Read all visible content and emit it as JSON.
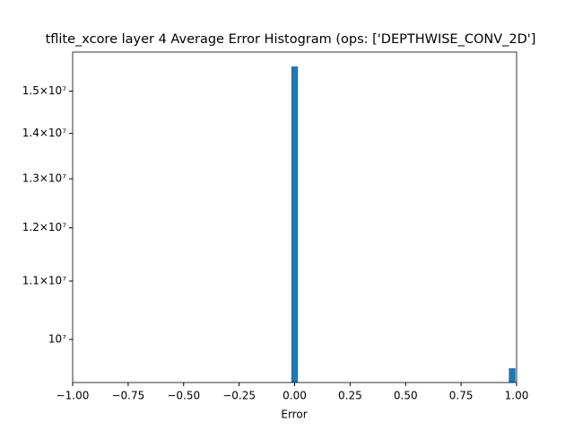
{
  "chart_data": {
    "type": "histogram",
    "title": "tflite_xcore layer 4 Average Error Histogram (ops: ['DEPTHWISE_CONV_2D']",
    "x_label": "Error",
    "bins": [
      -1,
      -0.015,
      0.015,
      0.965,
      0.995
    ],
    "values": [
      0,
      15620000,
      0,
      9540000
    ],
    "color": "#1f77b4",
    "log_y": true,
    "xlim": [
      -1,
      1
    ],
    "xticks": [
      {
        "value": -1,
        "label": "−1.00"
      },
      {
        "value": -0.75,
        "label": "−0.75"
      },
      {
        "value": -0.5,
        "label": "−0.50"
      },
      {
        "value": -0.25,
        "label": "−0.25"
      },
      {
        "value": 0,
        "label": "0.00"
      },
      {
        "value": 0.25,
        "label": "0.25"
      },
      {
        "value": 0.5,
        "label": "0.50"
      },
      {
        "value": 0.75,
        "label": "0.75"
      },
      {
        "value": 1,
        "label": "1.00"
      }
    ],
    "ylim": [
      9320000,
      15990000
    ],
    "yticks": [
      {
        "value": 10000000,
        "label": "10⁷"
      },
      {
        "value": 11000000,
        "label": "1.1×10⁷"
      },
      {
        "value": 12000000,
        "label": "1.2×10⁷"
      },
      {
        "value": 13000000,
        "label": "1.3×10⁷"
      },
      {
        "value": 14000000,
        "label": "1.4×10⁷"
      },
      {
        "value": 15000000,
        "label": "1.5×10⁷"
      }
    ]
  }
}
